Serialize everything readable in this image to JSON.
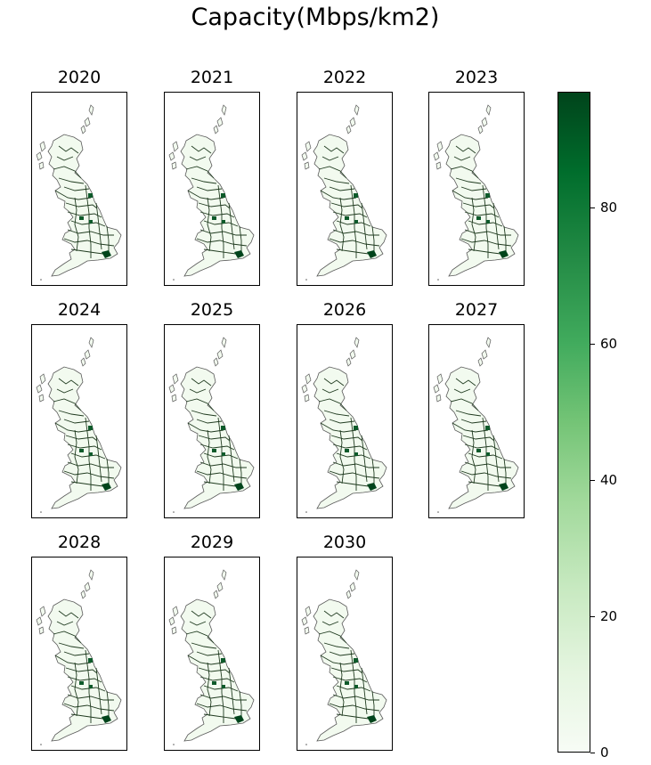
{
  "title": "Capacity(Mbps/km2)",
  "panels": [
    {
      "year": "2020"
    },
    {
      "year": "2021"
    },
    {
      "year": "2022"
    },
    {
      "year": "2023"
    },
    {
      "year": "2024"
    },
    {
      "year": "2025"
    },
    {
      "year": "2026"
    },
    {
      "year": "2027"
    },
    {
      "year": "2028"
    },
    {
      "year": "2029"
    },
    {
      "year": "2030"
    }
  ],
  "colorbar": {
    "colormap": "Greens",
    "min": 0,
    "max": 97,
    "ticks": [
      {
        "value": 0,
        "label": "0"
      },
      {
        "value": 20,
        "label": "20"
      },
      {
        "value": 40,
        "label": "40"
      },
      {
        "value": 60,
        "label": "60"
      },
      {
        "value": 80,
        "label": "80"
      }
    ]
  },
  "colors": {
    "land": "#f2faef",
    "land_light": "#e3f4df",
    "boundary": "#1f3a1f",
    "outline": "#5a5a5a",
    "hotspot": "#0d5a2a",
    "hotspot_dark": "#00441b"
  }
}
